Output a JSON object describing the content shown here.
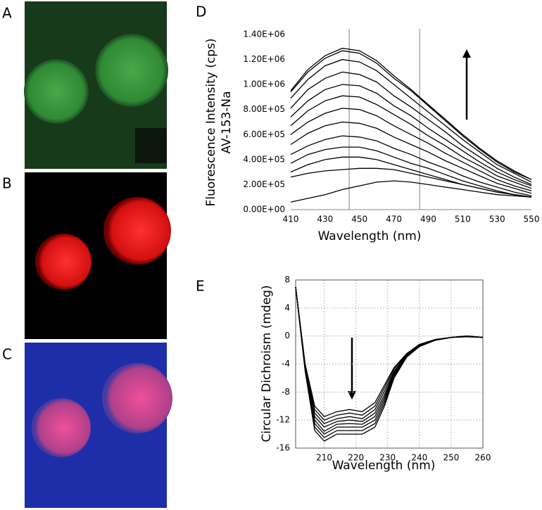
{
  "panels": [
    "A",
    "B",
    "C"
  ],
  "chart_data": [
    {
      "type": "line",
      "panel": "D",
      "y_label_lines": [
        "Fluorescence Intensity (cps)",
        "AV-153-Na"
      ],
      "x_label": "Wavelength (nm)",
      "xlim": [
        410,
        550
      ],
      "xticks": [
        410,
        430,
        450,
        470,
        490,
        510,
        530,
        550
      ],
      "ylim": [
        0,
        1400000
      ],
      "yticks": [
        {
          "value": 0,
          "label": "0.00E+00"
        },
        {
          "value": 200000,
          "label": "2.00E+05"
        },
        {
          "value": 400000,
          "label": "4.00E+05"
        },
        {
          "value": 600000,
          "label": "6.00E+05"
        },
        {
          "value": 800000,
          "label": "8.00E+05"
        },
        {
          "value": 1000000,
          "label": "1.00E+06"
        },
        {
          "value": 1200000,
          "label": "1.20E+06"
        },
        {
          "value": 1400000,
          "label": "1.40E+06"
        }
      ],
      "grid": false,
      "vlines": [
        444,
        485
      ],
      "x": [
        410,
        420,
        430,
        440,
        450,
        460,
        470,
        480,
        490,
        500,
        510,
        520,
        530,
        540,
        550
      ],
      "series": [
        {
          "color": "#000000",
          "values": [
            950000.0,
            1120000.0,
            1230000.0,
            1290000.0,
            1270000.0,
            1190000.0,
            1070000.0,
            960000.0,
            840000.0,
            720000.0,
            600000.0,
            490000.0,
            390000.0,
            310000.0,
            240000.0
          ]
        },
        {
          "color": "#000000",
          "values": [
            940000.0,
            1100000.0,
            1210000.0,
            1270000.0,
            1250000.0,
            1170000.0,
            1050000.0,
            950000.0,
            830000.0,
            710000.0,
            590000.0,
            480000.0,
            380000.0,
            300000.0,
            240000.0
          ]
        },
        {
          "color": "#000000",
          "values": [
            890000.0,
            1040000.0,
            1150000.0,
            1200000.0,
            1180000.0,
            1110000.0,
            1000000.0,
            890000.0,
            780000.0,
            670000.0,
            560000.0,
            460000.0,
            360000.0,
            290000.0,
            220000.0
          ]
        },
        {
          "color": "#000000",
          "values": [
            810000.0,
            960000.0,
            1050000.0,
            1100000.0,
            1080000.0,
            1020000.0,
            910000.0,
            820000.0,
            720000.0,
            620000.0,
            510000.0,
            420000.0,
            330000.0,
            260000.0,
            200000.0
          ]
        },
        {
          "color": "#000000",
          "values": [
            740000.0,
            870000.0,
            960000.0,
            1000000.0,
            990000.0,
            930000.0,
            830000.0,
            750000.0,
            650000.0,
            560000.0,
            470000.0,
            380000.0,
            300000.0,
            240000.0,
            190000.0
          ]
        },
        {
          "color": "#000000",
          "values": [
            670000.0,
            790000.0,
            870000.0,
            910000.0,
            900000.0,
            840000.0,
            760000.0,
            680000.0,
            590000.0,
            510000.0,
            420000.0,
            350000.0,
            270000.0,
            220000.0,
            170000.0
          ]
        },
        {
          "color": "#000000",
          "values": [
            600000.0,
            700000.0,
            770000.0,
            810000.0,
            800000.0,
            750000.0,
            670000.0,
            600000.0,
            530000.0,
            450000.0,
            380000.0,
            310000.0,
            240000.0,
            190000.0,
            150000.0
          ]
        },
        {
          "color": "#000000",
          "values": [
            520000.0,
            610000.0,
            670000.0,
            700000.0,
            690000.0,
            650000.0,
            580000.0,
            520000.0,
            460000.0,
            390000.0,
            330000.0,
            270000.0,
            210000.0,
            170000.0,
            130000.0
          ]
        },
        {
          "color": "#000000",
          "values": [
            440000.0,
            510000.0,
            560000.0,
            590000.0,
            580000.0,
            550000.0,
            490000.0,
            440000.0,
            380000.0,
            330000.0,
            270000.0,
            220000.0,
            180000.0,
            140000.0,
            110000.0
          ]
        },
        {
          "color": "#000000",
          "values": [
            370000.0,
            440000.0,
            480000.0,
            500000.0,
            500000.0,
            470000.0,
            420000.0,
            370000.0,
            330000.0,
            280000.0,
            230000.0,
            190000.0,
            150000.0,
            120000.0,
            100000.0
          ]
        },
        {
          "color": "#000000",
          "values": [
            300000.0,
            360000.0,
            400000.0,
            420000.0,
            420000.0,
            400000.0,
            360000.0,
            320000.0,
            280000.0,
            240000.0,
            200000.0,
            170000.0,
            140000.0,
            120000.0,
            100000.0
          ]
        },
        {
          "color": "#000000",
          "values": [
            260000.0,
            290000.0,
            310000.0,
            320000.0,
            330000.0,
            330000.0,
            320000.0,
            290000.0,
            260000.0,
            230000.0,
            200000.0,
            170000.0,
            140000.0,
            120000.0,
            100000.0
          ]
        },
        {
          "color": "#000000",
          "values": [
            60000.0,
            90000.0,
            120000.0,
            160000.0,
            190000.0,
            220000.0,
            230000.0,
            220000.0,
            200000.0,
            180000.0,
            160000.0,
            140000.0,
            120000.0,
            110000.0,
            100000.0
          ]
        }
      ]
    },
    {
      "type": "line",
      "panel": "E",
      "y_label_lines": [
        "Circular Dichroism (mdeg)"
      ],
      "x_label": "Wavelength (nm)",
      "xlim": [
        201,
        260
      ],
      "xticks": [
        210,
        220,
        230,
        240,
        250,
        260
      ],
      "ylim": [
        -16,
        8
      ],
      "yticks": [
        -16,
        -12,
        -8,
        -4,
        0,
        4,
        8
      ],
      "grid": true,
      "vlines": [],
      "x": [
        201,
        204,
        207,
        210,
        214,
        218,
        222,
        226,
        229,
        232,
        236,
        240,
        245,
        250,
        255,
        260
      ],
      "series": [
        {
          "color": "#000000",
          "values": [
            7,
            -4,
            -10,
            -11.5,
            -10.8,
            -10.5,
            -10.8,
            -9.5,
            -7,
            -4.5,
            -2.5,
            -1.2,
            -0.5,
            -0.2,
            -0.1,
            -0.2
          ]
        },
        {
          "color": "#000000",
          "values": [
            7,
            -4.1,
            -10.5,
            -12,
            -11.3,
            -11,
            -11.3,
            -10,
            -7.4,
            -4.7,
            -2.6,
            -1.2,
            -0.5,
            -0.2,
            -0.1,
            -0.2
          ]
        },
        {
          "color": "#000000",
          "values": [
            7,
            -4.3,
            -11,
            -12.5,
            -11.8,
            -11.5,
            -11.8,
            -10.5,
            -7.9,
            -5,
            -2.7,
            -1.3,
            -0.5,
            -0.2,
            0,
            -0.2
          ]
        },
        {
          "color": "#000000",
          "values": [
            7,
            -4.4,
            -11.5,
            -13,
            -12.2,
            -12,
            -12.2,
            -11,
            -8.4,
            -5.2,
            -2.8,
            -1.3,
            -0.6,
            -0.2,
            0,
            -0.2
          ]
        },
        {
          "color": "#000000",
          "values": [
            7,
            -4.6,
            -12,
            -13.6,
            -12.6,
            -12.5,
            -12.6,
            -11.5,
            -8.8,
            -5.4,
            -2.8,
            -1.4,
            -0.6,
            -0.2,
            0,
            -0.2
          ]
        },
        {
          "color": "#000000",
          "values": [
            7,
            -4.7,
            -12.5,
            -14,
            -13,
            -13,
            -13,
            -12,
            -9.2,
            -5.6,
            -2.9,
            -1.4,
            -0.6,
            -0.2,
            0,
            -0.2
          ]
        },
        {
          "color": "#000000",
          "values": [
            7,
            -4.9,
            -13,
            -14.5,
            -13.5,
            -13.5,
            -13.5,
            -12.5,
            -9.6,
            -5.8,
            -3,
            -1.5,
            -0.6,
            -0.2,
            0,
            -0.2
          ]
        },
        {
          "color": "#000000",
          "values": [
            7,
            -5,
            -13.5,
            -15,
            -14,
            -14,
            -14,
            -13,
            -10,
            -6,
            -3,
            -1.5,
            -0.6,
            -0.2,
            0,
            -0.2
          ]
        }
      ]
    }
  ]
}
